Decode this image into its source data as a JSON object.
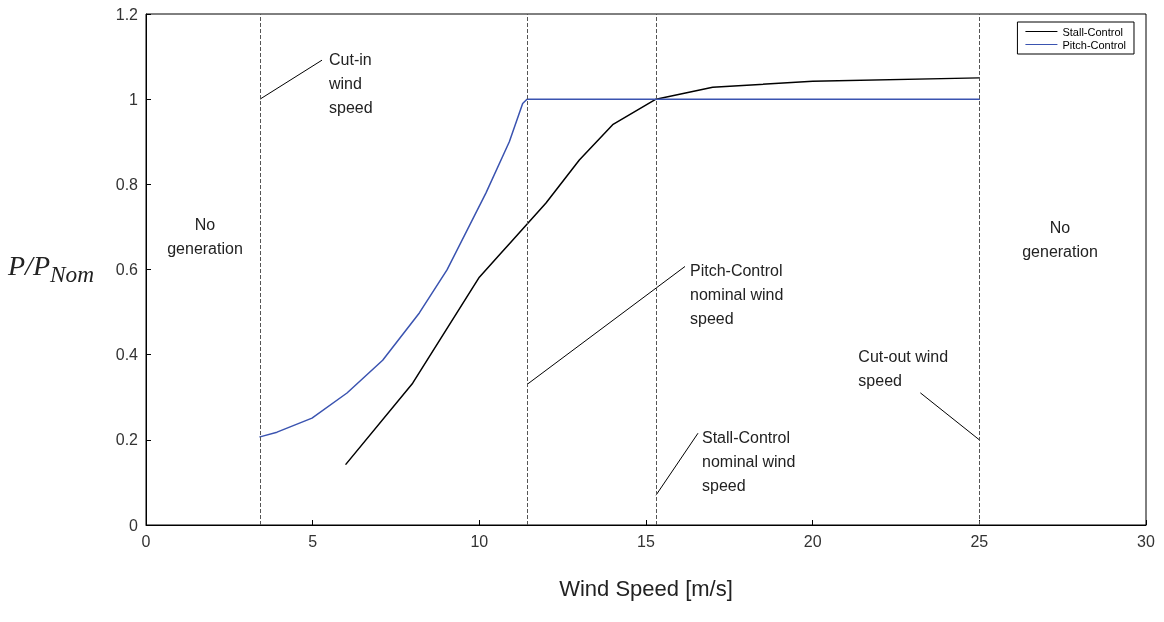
{
  "chart_data": {
    "type": "line",
    "xlabel": "Wind Speed [m/s]",
    "ylabel": "P/P$_{Nom}$",
    "xlim": [
      0,
      30
    ],
    "xticks": [
      0,
      5,
      10,
      15,
      20,
      25,
      30
    ],
    "ylim": [
      0,
      1.2
    ],
    "yticks": [
      0,
      0.2,
      0.4,
      0.6,
      0.8,
      1,
      1.2
    ],
    "grid": false,
    "legend": "top right",
    "marker": "none",
    "line_style": "solid",
    "series": [
      {
        "name": "Stall-Control",
        "color": "#000000",
        "x": [
          6,
          8,
          10,
          12,
          13,
          14,
          15.3,
          17,
          20,
          25
        ],
        "values": [
          0.143,
          0.333,
          0.582,
          0.756,
          0.857,
          0.94,
          1.0,
          1.028,
          1.042,
          1.05
        ]
      },
      {
        "name": "Pitch-Control",
        "color": "#3a53b0",
        "x": [
          3.42,
          3.93,
          4.98,
          6.03,
          7.1,
          8.2,
          9.03,
          10.2,
          10.9,
          11.3,
          11.43,
          15,
          20,
          25
        ],
        "values": [
          0.207,
          0.218,
          0.251,
          0.31,
          0.387,
          0.498,
          0.599,
          0.78,
          0.9,
          0.99,
          1.0,
          1.0,
          1.0,
          1.0
        ]
      }
    ],
    "ref_lines": [
      {
        "axis": "x",
        "value": 3.42,
        "color": "#555555",
        "line_style": "dashed"
      },
      {
        "axis": "x",
        "value": 11.43,
        "color": "#555555",
        "line_style": "dashed"
      },
      {
        "axis": "x",
        "value": 15.3,
        "color": "#555555",
        "line_style": "dashed"
      },
      {
        "axis": "x",
        "value": 25,
        "color": "#555555",
        "line_style": "dashed"
      }
    ],
    "annotations": [
      "No generation",
      {
        "text": "Cut-in wind speed",
        "x": 3.42,
        "y": 1.0
      },
      {
        "text": "Pitch-Control nominal wind speed",
        "x": 11.43,
        "y": 0.33
      },
      {
        "text": "Stall-Control nominal wind speed",
        "x": 15.3,
        "y": 0.07
      },
      {
        "text": "Cut-out wind speed",
        "x": 25,
        "y": 0.2
      },
      "No generation"
    ]
  }
}
